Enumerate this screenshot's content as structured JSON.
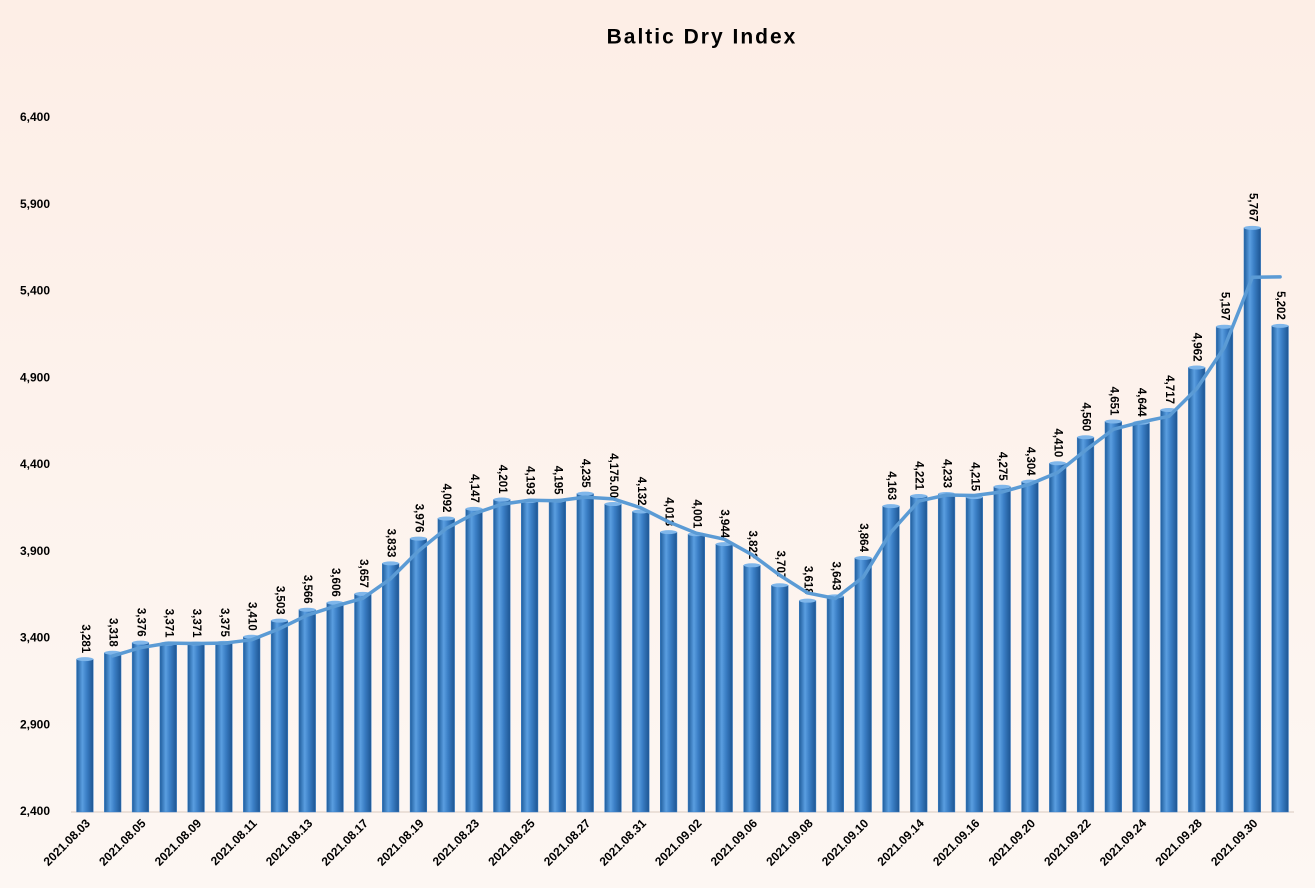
{
  "chart_data": {
    "type": "bar",
    "title": "Baltic Dry Index",
    "categories": [
      "2021.08.03",
      null,
      "2021.08.05",
      null,
      "2021.08.09",
      null,
      "2021.08.11",
      null,
      "2021.08.13",
      null,
      "2021.08.17",
      null,
      "2021.08.19",
      null,
      "2021.08.23",
      null,
      "2021.08.25",
      null,
      "2021.08.27",
      null,
      "2021.08.31",
      null,
      "2021.09.02",
      null,
      "2021.09.06",
      null,
      "2021.09.08",
      null,
      "2021.09.10",
      null,
      "2021.09.14",
      null,
      "2021.09.16",
      null,
      "2021.09.20",
      null,
      "2021.09.22",
      null,
      "2021.09.24",
      null,
      "2021.09.28",
      null,
      "2021.09.30",
      null
    ],
    "series": [
      {
        "type": "bar",
        "color": "#3b7fc6",
        "values": [
          3281,
          3318,
          3376,
          3371,
          3371,
          3375,
          3410,
          3503,
          3566,
          3606,
          3657,
          3833,
          3976,
          4092,
          4147,
          4201,
          4193,
          4195,
          4235,
          4175,
          4132,
          4013,
          4001,
          3944,
          3822,
          3707,
          3618,
          3643,
          3864,
          4163,
          4221,
          4233,
          4215,
          4275,
          4304,
          4410,
          4560,
          4651,
          4644,
          4717,
          4962,
          5197,
          5767,
          5202
        ],
        "value_labels": [
          "3,281",
          "3,318",
          "3,376",
          "3,371",
          "3,371",
          "3,375",
          "3,410",
          "3,503",
          "3,566",
          "3,606",
          "3,657",
          "3,833",
          "3,976",
          "4,092",
          "4,147",
          "4,201",
          "4,193",
          "4,195",
          "4,235",
          "4,175.00",
          "4,132",
          "4,013",
          "4,001",
          "3,944",
          "3,822",
          "3,707",
          "3,618",
          "3,643",
          "3,864",
          "4,163",
          "4,221",
          "4,233",
          "4,215",
          "4,275",
          "4,304",
          "4,410",
          "4,560",
          "4,651",
          "4,644",
          "4,717",
          "4,962",
          "5,197",
          "5,767",
          "5,202"
        ]
      },
      {
        "type": "line",
        "color": "#5b9bd5",
        "values": [
          null,
          3299.5,
          3347,
          3373.5,
          3371,
          3373,
          3392.5,
          3456.5,
          3534.5,
          3586,
          3631.5,
          3745,
          3904.5,
          4034,
          4119.5,
          4174,
          4197,
          4194,
          4215,
          4205,
          4153.5,
          4072.5,
          4007,
          3972.5,
          3883,
          3764.5,
          3662.5,
          3630.5,
          3753.5,
          4013.5,
          4192,
          4227,
          4224,
          4245,
          4289.5,
          4357,
          4485,
          4605.5,
          4647.5,
          4680.5,
          4839.5,
          5079.5,
          5482,
          5484.5
        ]
      }
    ],
    "ylim": [
      2400,
      6400
    ],
    "yticks": [
      {
        "value": 2400,
        "label": "2,400"
      },
      {
        "value": 2900,
        "label": "2,900"
      },
      {
        "value": 3400,
        "label": "3,400"
      },
      {
        "value": 3900,
        "label": "3,900"
      },
      {
        "value": 4400,
        "label": "4,400"
      },
      {
        "value": 4900,
        "label": "4,900"
      },
      {
        "value": 5400,
        "label": "5,400"
      },
      {
        "value": 5900,
        "label": "5,900"
      },
      {
        "value": 6400,
        "label": "6,400"
      }
    ],
    "grid": false
  }
}
